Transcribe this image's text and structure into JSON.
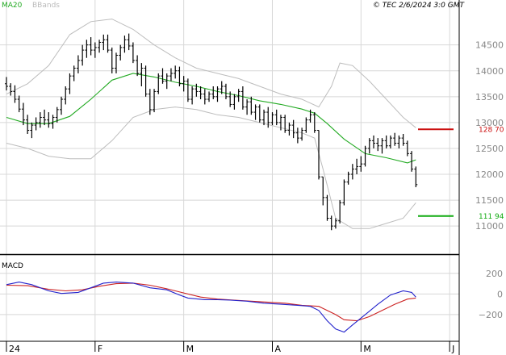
{
  "header": {
    "legend_ma": "MA20",
    "legend_bb": "BBands",
    "copyright": "© TEC 2/6/2024 3:0 GMT"
  },
  "colors": {
    "background": "#ffffff",
    "grid": "#d8d8d8",
    "panel_border": "#000000",
    "price_bars": "#000000",
    "ma20": "#22aa22",
    "bbands": "#bdbdbd",
    "macd": "#2222cc",
    "signal": "#cc2222",
    "resistance": "#cc1111",
    "support": "#11aa11",
    "axis_text": "#888888"
  },
  "chart_data": [
    {
      "type": "ohlc",
      "y_ticks": [
        11000,
        11500,
        12000,
        12500,
        13000,
        13500,
        14000,
        14500
      ],
      "y_tick_labels": [
        "11000",
        "11500",
        "12000",
        "12500",
        "13000",
        "13500",
        "14000",
        "14500"
      ],
      "ylim": [
        10550,
        15150
      ],
      "x_ticks": [
        "24",
        "F",
        "M",
        "A",
        "M",
        "J"
      ],
      "x_tick_sessions": [
        0,
        21,
        42,
        63,
        84,
        105
      ],
      "ohlc_days": [
        [
          0,
          13750,
          13880,
          13620,
          13700
        ],
        [
          1,
          13700,
          13760,
          13520,
          13600
        ],
        [
          2,
          13600,
          13720,
          13380,
          13450
        ],
        [
          3,
          13450,
          13520,
          13200,
          13260
        ],
        [
          4,
          13260,
          13380,
          12950,
          13050
        ],
        [
          5,
          13050,
          13150,
          12780,
          12850
        ],
        [
          6,
          12850,
          13000,
          12700,
          12950
        ],
        [
          7,
          12950,
          13100,
          12850,
          13000
        ],
        [
          8,
          13000,
          13200,
          12900,
          13100
        ],
        [
          9,
          13100,
          13250,
          12950,
          13050
        ],
        [
          10,
          13050,
          13200,
          12900,
          12980
        ],
        [
          11,
          12980,
          13150,
          12880,
          13100
        ],
        [
          12,
          13100,
          13300,
          13000,
          13250
        ],
        [
          13,
          13250,
          13500,
          13150,
          13450
        ],
        [
          14,
          13450,
          13700,
          13350,
          13650
        ],
        [
          15,
          13650,
          13950,
          13550,
          13900
        ],
        [
          16,
          13900,
          14100,
          13800,
          14050
        ],
        [
          17,
          14050,
          14300,
          13950,
          14200
        ],
        [
          18,
          14200,
          14500,
          14100,
          14400
        ],
        [
          19,
          14400,
          14600,
          14250,
          14500
        ],
        [
          20,
          14500,
          14650,
          14300,
          14400
        ],
        [
          21,
          14400,
          14550,
          14250,
          14450
        ],
        [
          22,
          14450,
          14600,
          14350,
          14550
        ],
        [
          23,
          14550,
          14700,
          14400,
          14600
        ],
        [
          24,
          14600,
          14700,
          14350,
          14400
        ],
        [
          25,
          14400,
          14450,
          13950,
          14050
        ],
        [
          26,
          14050,
          14350,
          13950,
          14300
        ],
        [
          27,
          14300,
          14500,
          14200,
          14450
        ],
        [
          28,
          14450,
          14680,
          14350,
          14600
        ],
        [
          29,
          14600,
          14720,
          14400,
          14480
        ],
        [
          30,
          14480,
          14550,
          14150,
          14200
        ],
        [
          31,
          14200,
          14300,
          13900,
          13950
        ],
        [
          32,
          13950,
          14150,
          13700,
          14050
        ],
        [
          33,
          14050,
          14100,
          13500,
          13550
        ],
        [
          34,
          13550,
          13650,
          13150,
          13250
        ],
        [
          35,
          13250,
          13650,
          13200,
          13600
        ],
        [
          36,
          13600,
          13950,
          13550,
          13900
        ],
        [
          37,
          13900,
          14050,
          13750,
          13800
        ],
        [
          38,
          13800,
          13950,
          13650,
          13900
        ],
        [
          39,
          13900,
          14050,
          13800,
          13950
        ],
        [
          40,
          13950,
          14100,
          13850,
          14000
        ],
        [
          41,
          14000,
          14080,
          13700,
          13750
        ],
        [
          42,
          13750,
          13900,
          13600,
          13800
        ],
        [
          43,
          13800,
          13850,
          13400,
          13450
        ],
        [
          44,
          13450,
          13700,
          13350,
          13650
        ],
        [
          45,
          13650,
          13750,
          13500,
          13600
        ],
        [
          46,
          13600,
          13700,
          13450,
          13550
        ],
        [
          47,
          13550,
          13650,
          13350,
          13450
        ],
        [
          48,
          13450,
          13600,
          13400,
          13550
        ],
        [
          49,
          13550,
          13700,
          13450,
          13500
        ],
        [
          50,
          13500,
          13700,
          13400,
          13650
        ],
        [
          51,
          13650,
          13800,
          13550,
          13700
        ],
        [
          52,
          13700,
          13750,
          13450,
          13500
        ],
        [
          53,
          13500,
          13600,
          13300,
          13350
        ],
        [
          54,
          13350,
          13550,
          13250,
          13500
        ],
        [
          55,
          13500,
          13650,
          13400,
          13600
        ],
        [
          56,
          13600,
          13700,
          13250,
          13300
        ],
        [
          57,
          13300,
          13450,
          13150,
          13400
        ],
        [
          58,
          13400,
          13500,
          13150,
          13200
        ],
        [
          59,
          13200,
          13350,
          13050,
          13300
        ],
        [
          60,
          13300,
          13350,
          13000,
          13050
        ],
        [
          61,
          13050,
          13250,
          12950,
          13200
        ],
        [
          62,
          13200,
          13300,
          12900,
          13000
        ],
        [
          63,
          13000,
          13200,
          12950,
          13150
        ],
        [
          64,
          13150,
          13250,
          12950,
          13000
        ],
        [
          65,
          13000,
          13150,
          12850,
          13100
        ],
        [
          66,
          13100,
          13150,
          12800,
          12850
        ],
        [
          67,
          12850,
          13000,
          12750,
          12950
        ],
        [
          68,
          12950,
          13050,
          12700,
          12800
        ],
        [
          69,
          12800,
          12900,
          12600,
          12700
        ],
        [
          70,
          12700,
          12900,
          12650,
          12850
        ],
        [
          71,
          12850,
          13100,
          12800,
          13050
        ],
        [
          72,
          13050,
          13250,
          13000,
          13150
        ],
        [
          73,
          13150,
          13200,
          12800,
          12850
        ],
        [
          74,
          12850,
          12850,
          11900,
          11950
        ],
        [
          75,
          11950,
          11950,
          11400,
          11550
        ],
        [
          76,
          11550,
          11600,
          11100,
          11150
        ],
        [
          77,
          11150,
          11200,
          10920,
          11000
        ],
        [
          78,
          11000,
          11150,
          10950,
          11100
        ],
        [
          79,
          11100,
          11500,
          11050,
          11450
        ],
        [
          80,
          11450,
          11900,
          11400,
          11850
        ],
        [
          81,
          11850,
          12050,
          11800,
          12000
        ],
        [
          82,
          12000,
          12200,
          11900,
          12100
        ],
        [
          83,
          12100,
          12300,
          12000,
          12150
        ],
        [
          84,
          12150,
          12350,
          12050,
          12200
        ],
        [
          85,
          12200,
          12550,
          12150,
          12500
        ],
        [
          86,
          12500,
          12700,
          12400,
          12650
        ],
        [
          87,
          12650,
          12750,
          12500,
          12600
        ],
        [
          88,
          12600,
          12700,
          12450,
          12550
        ],
        [
          89,
          12550,
          12700,
          12400,
          12650
        ],
        [
          90,
          12650,
          12750,
          12500,
          12550
        ],
        [
          91,
          12550,
          12750,
          12500,
          12700
        ],
        [
          92,
          12700,
          12800,
          12550,
          12600
        ],
        [
          93,
          12600,
          12750,
          12500,
          12700
        ],
        [
          94,
          12700,
          12780,
          12550,
          12600
        ],
        [
          95,
          12600,
          12650,
          12350,
          12400
        ],
        [
          96,
          12400,
          12450,
          12050,
          12100
        ],
        [
          97,
          12100,
          12150,
          11750,
          11800
        ]
      ],
      "ma20": [
        [
          0,
          13100
        ],
        [
          5,
          12980
        ],
        [
          10,
          12980
        ],
        [
          15,
          13120
        ],
        [
          20,
          13450
        ],
        [
          25,
          13820
        ],
        [
          30,
          13950
        ],
        [
          35,
          13880
        ],
        [
          40,
          13780
        ],
        [
          45,
          13700
        ],
        [
          50,
          13600
        ],
        [
          55,
          13520
        ],
        [
          60,
          13420
        ],
        [
          65,
          13350
        ],
        [
          70,
          13260
        ],
        [
          73,
          13180
        ],
        [
          76,
          12980
        ],
        [
          80,
          12680
        ],
        [
          85,
          12400
        ],
        [
          90,
          12320
        ],
        [
          95,
          12220
        ],
        [
          97,
          12280
        ]
      ],
      "bb_upper": [
        [
          0,
          13550
        ],
        [
          5,
          13750
        ],
        [
          10,
          14100
        ],
        [
          15,
          14700
        ],
        [
          20,
          14950
        ],
        [
          25,
          15000
        ],
        [
          30,
          14800
        ],
        [
          35,
          14500
        ],
        [
          40,
          14250
        ],
        [
          45,
          14050
        ],
        [
          50,
          13950
        ],
        [
          55,
          13850
        ],
        [
          60,
          13700
        ],
        [
          65,
          13550
        ],
        [
          70,
          13450
        ],
        [
          74,
          13300
        ],
        [
          77,
          13700
        ],
        [
          79,
          14150
        ],
        [
          82,
          14100
        ],
        [
          86,
          13800
        ],
        [
          90,
          13450
        ],
        [
          94,
          13100
        ],
        [
          97,
          12900
        ]
      ],
      "bb_lower": [
        [
          0,
          12600
        ],
        [
          5,
          12500
        ],
        [
          10,
          12350
        ],
        [
          15,
          12300
        ],
        [
          20,
          12300
        ],
        [
          25,
          12650
        ],
        [
          30,
          13100
        ],
        [
          35,
          13250
        ],
        [
          40,
          13300
        ],
        [
          45,
          13250
        ],
        [
          50,
          13150
        ],
        [
          55,
          13100
        ],
        [
          60,
          13000
        ],
        [
          65,
          12900
        ],
        [
          70,
          12800
        ],
        [
          73,
          12700
        ],
        [
          75,
          12100
        ],
        [
          78,
          11150
        ],
        [
          82,
          10950
        ],
        [
          86,
          10950
        ],
        [
          90,
          11050
        ],
        [
          94,
          11150
        ],
        [
          97,
          11450
        ]
      ],
      "levels": [
        {
          "name": "resistance",
          "value": 12870,
          "label": "128 70"
        },
        {
          "name": "support",
          "value": 11194,
          "label": "111 94"
        }
      ]
    },
    {
      "type": "line",
      "title": "MACD",
      "y_ticks": [
        200,
        0,
        -200
      ],
      "y_tick_labels": [
        "200",
        "0",
        "−200"
      ],
      "ylim": [
        -420,
        300
      ],
      "series": [
        {
          "points": [
            [
              0,
              90
            ],
            [
              3,
              115
            ],
            [
              6,
              90
            ],
            [
              10,
              30
            ],
            [
              13,
              5
            ],
            [
              17,
              15
            ],
            [
              20,
              60
            ],
            [
              23,
              105
            ],
            [
              26,
              115
            ],
            [
              30,
              105
            ],
            [
              34,
              60
            ],
            [
              38,
              40
            ],
            [
              41,
              -10
            ],
            [
              43,
              -40
            ],
            [
              47,
              -55
            ],
            [
              50,
              -55
            ],
            [
              53,
              -60
            ],
            [
              57,
              -70
            ],
            [
              61,
              -90
            ],
            [
              65,
              -100
            ],
            [
              69,
              -110
            ],
            [
              72,
              -120
            ],
            [
              74,
              -160
            ],
            [
              76,
              -260
            ],
            [
              78,
              -340
            ],
            [
              80,
              -370
            ],
            [
              82,
              -300
            ],
            [
              85,
              -200
            ],
            [
              88,
              -100
            ],
            [
              91,
              -10
            ],
            [
              94,
              30
            ],
            [
              96,
              15
            ],
            [
              97,
              -30
            ]
          ]
        },
        {
          "points": [
            [
              0,
              85
            ],
            [
              5,
              80
            ],
            [
              10,
              45
            ],
            [
              14,
              30
            ],
            [
              18,
              40
            ],
            [
              22,
              75
            ],
            [
              26,
              100
            ],
            [
              30,
              105
            ],
            [
              34,
              85
            ],
            [
              38,
              50
            ],
            [
              42,
              10
            ],
            [
              46,
              -30
            ],
            [
              50,
              -50
            ],
            [
              54,
              -60
            ],
            [
              58,
              -70
            ],
            [
              62,
              -80
            ],
            [
              66,
              -90
            ],
            [
              70,
              -110
            ],
            [
              74,
              -120
            ],
            [
              78,
              -200
            ],
            [
              80,
              -250
            ],
            [
              83,
              -260
            ],
            [
              86,
              -220
            ],
            [
              89,
              -160
            ],
            [
              92,
              -100
            ],
            [
              95,
              -50
            ],
            [
              97,
              -40
            ]
          ]
        }
      ]
    }
  ]
}
